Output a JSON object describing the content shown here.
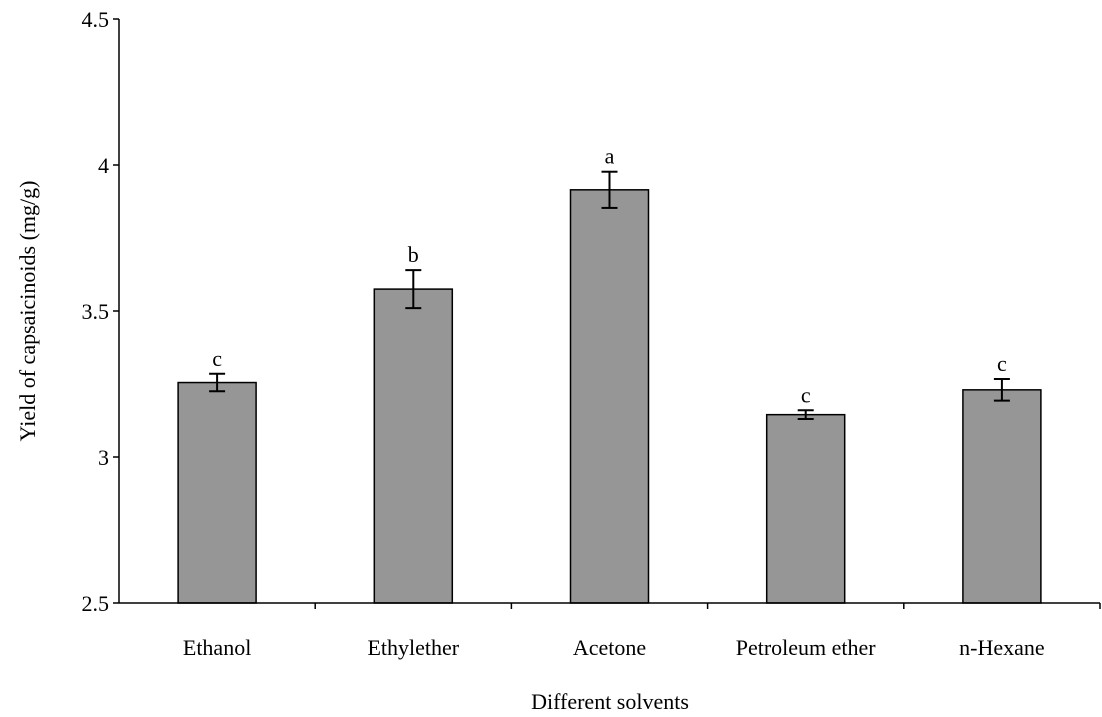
{
  "chart_data": {
    "type": "bar",
    "title": "",
    "xlabel": "Different solvents",
    "ylabel": "Yield of capsaicinoids (mg/g)",
    "ylim": [
      2.5,
      4.5
    ],
    "yticks": [
      2.5,
      3,
      3.5,
      4,
      4.5
    ],
    "ytick_labels": [
      "2.5",
      "3",
      "3.5",
      "4",
      "4.5"
    ],
    "grid": false,
    "legend": "none",
    "bar_color": "#969696",
    "categories": [
      "Ethanol",
      "Ethylether",
      "Acetone",
      "Petroleum ether",
      "n-Hexane"
    ],
    "values": [
      3.255,
      3.575,
      3.915,
      3.145,
      3.23
    ],
    "errors": [
      0.03,
      0.065,
      0.062,
      0.015,
      0.037
    ],
    "significance": [
      "c",
      "b",
      "a",
      "c",
      "c"
    ]
  }
}
